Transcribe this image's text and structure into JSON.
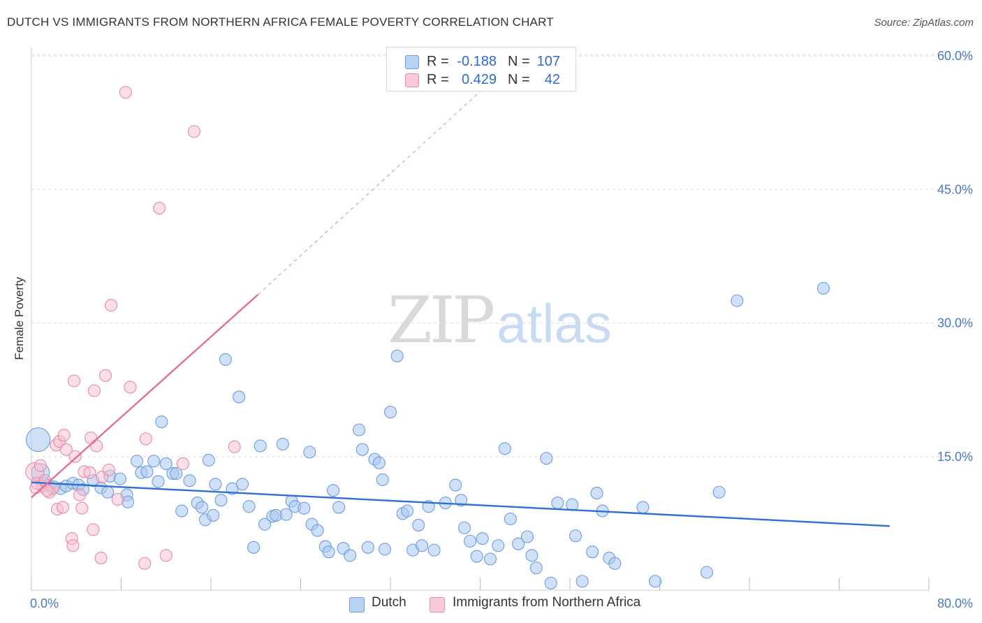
{
  "title": "DUTCH VS IMMIGRANTS FROM NORTHERN AFRICA FEMALE POVERTY CORRELATION CHART",
  "source": "Source: ZipAtlas.com",
  "watermark": {
    "zip": "ZIP",
    "atlas": "atlas"
  },
  "legend": {
    "rows": [
      {
        "r_label": "R =",
        "r_value": "-0.188",
        "n_label": "N =",
        "n_value": "107"
      },
      {
        "r_label": "R =",
        "r_value": "0.429",
        "n_label": "N =",
        "n_value": "42"
      }
    ]
  },
  "bottom_legend": {
    "dutch": "Dutch",
    "immigrants": "Immigrants from Northern Africa"
  },
  "colors": {
    "dutch_fill": "#a9c8f0",
    "dutch_stroke": "#6b9de0",
    "dutch_line": "#2e6fd0",
    "immig_fill": "#f7c0d2",
    "immig_stroke": "#e58aaa",
    "immig_line": "#e0709a",
    "tick_text": "#4a78c8",
    "grid": "#dddddd"
  },
  "chart_data": {
    "type": "scatter",
    "title": "DUTCH VS IMMIGRANTS FROM NORTHERN AFRICA FEMALE POVERTY CORRELATION CHART",
    "xlabel": "",
    "ylabel": "Female Poverty",
    "xlim": [
      0,
      80
    ],
    "ylim": [
      0,
      63
    ],
    "x_tick_labels": [
      "0.0%",
      "80.0%"
    ],
    "y_ticks": [
      15,
      30,
      45,
      60
    ],
    "y_tick_labels": [
      "15.0%",
      "30.0%",
      "45.0%",
      "60.0%"
    ],
    "grid": true,
    "legend_placement": "top-center",
    "series": [
      {
        "name": "Dutch",
        "R": -0.188,
        "N": 107,
        "trend": {
          "x": [
            0,
            76.5
          ],
          "y": [
            12.1,
            7.2
          ],
          "style": "solid"
        },
        "points": [
          [
            0.6,
            16.9
          ],
          [
            0.8,
            13.2
          ],
          [
            1.2,
            12.0
          ],
          [
            1.5,
            11.8
          ],
          [
            2.0,
            11.6
          ],
          [
            2.6,
            11.4
          ],
          [
            3.1,
            11.7
          ],
          [
            3.7,
            12.0
          ],
          [
            4.2,
            11.8
          ],
          [
            4.6,
            11.3
          ],
          [
            5.5,
            12.3
          ],
          [
            6.2,
            11.5
          ],
          [
            6.8,
            11.0
          ],
          [
            7.0,
            12.8
          ],
          [
            7.9,
            12.5
          ],
          [
            8.5,
            10.7
          ],
          [
            8.6,
            9.9
          ],
          [
            9.4,
            14.5
          ],
          [
            9.8,
            13.2
          ],
          [
            10.3,
            13.3
          ],
          [
            10.9,
            14.5
          ],
          [
            11.3,
            12.2
          ],
          [
            11.6,
            18.9
          ],
          [
            12.0,
            14.2
          ],
          [
            12.6,
            13.1
          ],
          [
            12.9,
            13.1
          ],
          [
            13.4,
            8.9
          ],
          [
            14.1,
            12.3
          ],
          [
            14.8,
            9.8
          ],
          [
            15.2,
            9.3
          ],
          [
            15.5,
            7.9
          ],
          [
            15.8,
            14.6
          ],
          [
            16.2,
            8.4
          ],
          [
            16.9,
            10.1
          ],
          [
            17.3,
            25.9
          ],
          [
            17.9,
            11.4
          ],
          [
            18.5,
            21.7
          ],
          [
            18.8,
            11.9
          ],
          [
            19.4,
            9.4
          ],
          [
            19.8,
            4.8
          ],
          [
            20.4,
            16.2
          ],
          [
            20.8,
            7.4
          ],
          [
            21.5,
            8.3
          ],
          [
            21.8,
            8.4
          ],
          [
            22.4,
            16.4
          ],
          [
            22.7,
            8.5
          ],
          [
            23.2,
            10.0
          ],
          [
            23.5,
            9.4
          ],
          [
            24.3,
            9.2
          ],
          [
            24.8,
            15.5
          ],
          [
            25.0,
            7.4
          ],
          [
            25.5,
            6.7
          ],
          [
            26.2,
            4.9
          ],
          [
            26.5,
            4.3
          ],
          [
            26.9,
            11.2
          ],
          [
            27.4,
            9.3
          ],
          [
            27.8,
            4.7
          ],
          [
            28.4,
            3.9
          ],
          [
            29.2,
            18.0
          ],
          [
            29.5,
            15.8
          ],
          [
            30.0,
            4.8
          ],
          [
            30.6,
            14.7
          ],
          [
            31.0,
            14.3
          ],
          [
            31.3,
            12.4
          ],
          [
            32.0,
            20.0
          ],
          [
            32.6,
            26.3
          ],
          [
            33.1,
            8.6
          ],
          [
            33.5,
            8.9
          ],
          [
            34.0,
            4.5
          ],
          [
            34.5,
            7.3
          ],
          [
            34.8,
            5.0
          ],
          [
            35.4,
            9.4
          ],
          [
            35.9,
            4.5
          ],
          [
            36.9,
            9.8
          ],
          [
            37.8,
            11.8
          ],
          [
            38.3,
            10.1
          ],
          [
            38.6,
            7.0
          ],
          [
            39.1,
            5.5
          ],
          [
            39.7,
            3.8
          ],
          [
            40.2,
            5.8
          ],
          [
            40.9,
            3.5
          ],
          [
            41.6,
            5.0
          ],
          [
            42.2,
            15.9
          ],
          [
            42.7,
            8.0
          ],
          [
            43.4,
            5.2
          ],
          [
            44.2,
            6.0
          ],
          [
            44.6,
            3.9
          ],
          [
            45.0,
            2.5
          ],
          [
            45.9,
            14.8
          ],
          [
            46.3,
            0.8
          ],
          [
            46.9,
            9.8
          ],
          [
            48.2,
            9.6
          ],
          [
            48.5,
            6.1
          ],
          [
            49.1,
            1.0
          ],
          [
            50.0,
            4.3
          ],
          [
            50.4,
            10.9
          ],
          [
            50.9,
            8.9
          ],
          [
            51.5,
            3.6
          ],
          [
            52.0,
            3.0
          ],
          [
            54.5,
            9.3
          ],
          [
            55.6,
            1.0
          ],
          [
            60.2,
            2.0
          ],
          [
            61.3,
            11.0
          ],
          [
            62.9,
            32.5
          ],
          [
            70.6,
            33.9
          ],
          [
            31.5,
            4.6
          ],
          [
            16.4,
            11.9
          ]
        ]
      },
      {
        "name": "Immigrants from Northern Africa",
        "R": 0.429,
        "N": 42,
        "trend": {
          "x": [
            0,
            20.2
          ],
          "y": [
            10.4,
            33.2
          ],
          "style": "solid",
          "extended_x": [
            20.2,
            40.0
          ],
          "extended_y": [
            33.2,
            56.0
          ],
          "extended_style": "dashed"
        },
        "points": [
          [
            0.3,
            13.3
          ],
          [
            0.5,
            12.0
          ],
          [
            0.8,
            14.0
          ],
          [
            1.0,
            11.7
          ],
          [
            1.2,
            12.3
          ],
          [
            1.6,
            11.0
          ],
          [
            1.9,
            11.4
          ],
          [
            2.2,
            16.3
          ],
          [
            2.3,
            9.1
          ],
          [
            2.5,
            16.7
          ],
          [
            2.8,
            9.3
          ],
          [
            2.9,
            17.4
          ],
          [
            3.1,
            15.8
          ],
          [
            3.6,
            5.8
          ],
          [
            3.7,
            5.0
          ],
          [
            3.8,
            23.5
          ],
          [
            3.9,
            15.0
          ],
          [
            4.3,
            10.7
          ],
          [
            4.5,
            9.2
          ],
          [
            4.7,
            13.3
          ],
          [
            5.2,
            13.2
          ],
          [
            5.3,
            17.1
          ],
          [
            5.5,
            6.8
          ],
          [
            5.6,
            22.4
          ],
          [
            5.8,
            16.2
          ],
          [
            6.2,
            3.6
          ],
          [
            6.3,
            12.7
          ],
          [
            6.6,
            24.1
          ],
          [
            6.9,
            13.5
          ],
          [
            7.1,
            32.0
          ],
          [
            7.7,
            10.2
          ],
          [
            8.4,
            55.9
          ],
          [
            8.8,
            22.8
          ],
          [
            10.1,
            3.0
          ],
          [
            10.2,
            17.0
          ],
          [
            11.4,
            42.9
          ],
          [
            12.0,
            3.9
          ],
          [
            13.5,
            14.2
          ],
          [
            14.5,
            51.5
          ],
          [
            18.1,
            16.1
          ],
          [
            0.4,
            11.5
          ],
          [
            1.4,
            11.2
          ]
        ]
      }
    ]
  }
}
